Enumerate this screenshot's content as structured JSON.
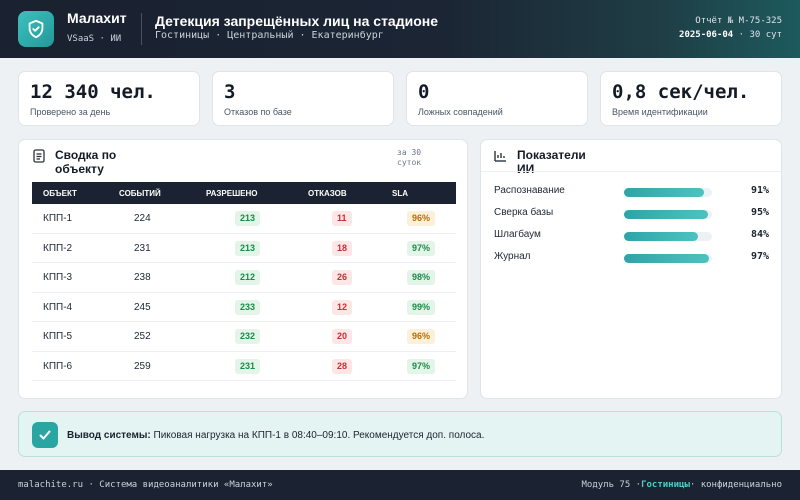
{
  "header": {
    "brand_name": "Малахит",
    "brand_sub": "VSaaS · ИИ",
    "title": "Детекция запрещённых лиц на стадионе",
    "subtitle": "Гостиницы · Центральный · Екатеринбург",
    "report_label": "Отчёт № М-75-325",
    "report_date": "2025-06-04",
    "report_period_sep": "·",
    "report_period": "30 сут",
    "logo_icon": "shield-check-icon",
    "accent": "#2aa6a2"
  },
  "kpis": [
    {
      "value": "12 340 чел.",
      "label": "Проверено за день"
    },
    {
      "value": "3",
      "label": "Отказов по базе"
    },
    {
      "value": "0",
      "label": "Ложных совпадений"
    },
    {
      "value": "0,8 сек/чел.",
      "label": "Время идентификации"
    }
  ],
  "summary": {
    "title": "Сводка по объекту",
    "period": "за 30 суток",
    "icon": "document-icon",
    "columns": [
      "ОБЪЕКТ",
      "СОБЫТИЙ",
      "РАЗРЕШЕНО",
      "ОТКАЗОВ",
      "SLA"
    ],
    "rows": [
      {
        "object": "КПП-1",
        "events": "224",
        "allowed": "213",
        "denied": "11",
        "sla": "96%",
        "sla_status": "warn"
      },
      {
        "object": "КПП-2",
        "events": "231",
        "allowed": "213",
        "denied": "18",
        "sla": "97%",
        "sla_status": "ok"
      },
      {
        "object": "КПП-3",
        "events": "238",
        "allowed": "212",
        "denied": "26",
        "sla": "98%",
        "sla_status": "ok"
      },
      {
        "object": "КПП-4",
        "events": "245",
        "allowed": "233",
        "denied": "12",
        "sla": "99%",
        "sla_status": "ok"
      },
      {
        "object": "КПП-5",
        "events": "252",
        "allowed": "232",
        "denied": "20",
        "sla": "96%",
        "sla_status": "warn"
      },
      {
        "object": "КПП-6",
        "events": "259",
        "allowed": "231",
        "denied": "28",
        "sla": "97%",
        "sla_status": "ok"
      }
    ]
  },
  "metrics": {
    "title": "Показатели ИИ",
    "icon": "bar-chart-icon",
    "items": [
      {
        "name": "Распознавание",
        "value": "91%",
        "level": 91
      },
      {
        "name": "Сверка базы",
        "value": "95%",
        "level": 95
      },
      {
        "name": "Шлагбаум",
        "value": "84%",
        "level": 84
      },
      {
        "name": "Журнал",
        "value": "97%",
        "level": 97
      }
    ]
  },
  "conclusion": {
    "label": "Вывод системы:",
    "text": "Пиковая нагрузка на КПП-1 в 08:40–09:10. Рекомендуется доп. полоса.",
    "icon": "check-icon"
  },
  "footer": {
    "left": "malachite.ru · Система видеоаналитики «Малахит»",
    "right_prefix": "Модуль 75 ·",
    "right_highlight": "Гостиницы",
    "right_suffix": "· конфиденциально"
  }
}
